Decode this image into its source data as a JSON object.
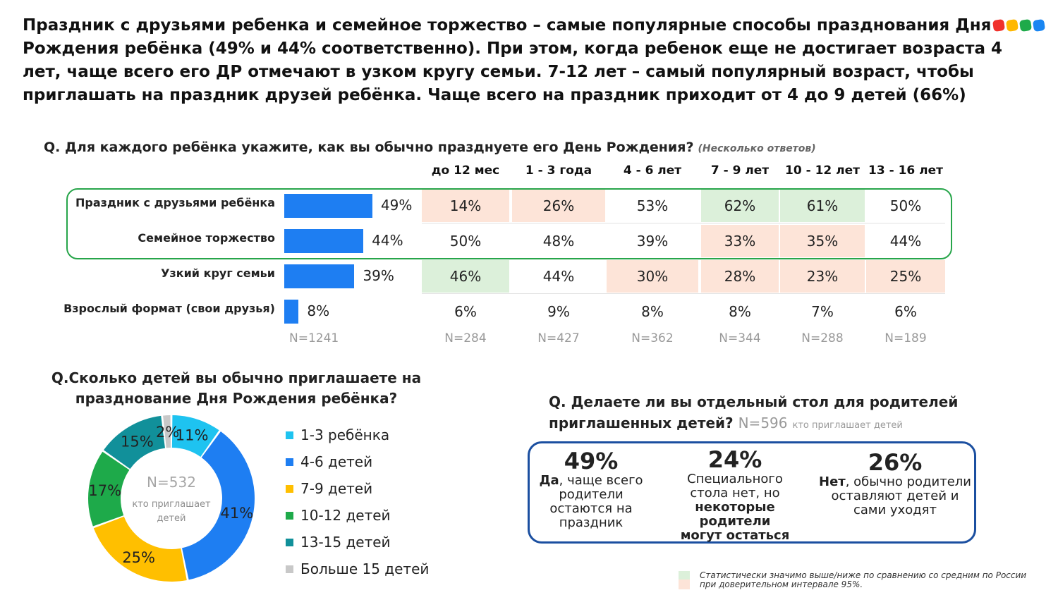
{
  "headline": "Праздник  с друзьями ребенка и семейное торжество  – самые популярные способы празднования Дня Рождения ребёнка (49% и 44% соответственно). При этом, когда ребенок еще не достигает возраста 4 лет, чаще всего его ДР отмечают в узком кругу семьи. 7-12 лет – самый популярный возраст, чтобы приглашать на праздник друзей ребёнка. Чаще всего на праздник приходит от 4 до 9 детей (66%)",
  "logo_colors": [
    "#f0312b",
    "#ffb800",
    "#1eaa4a",
    "#1a86f2"
  ],
  "q1": {
    "question": "Q. Для каждого ребёнка укажите, как вы обычно празднуете его День Рождения?",
    "note": "(Несколько ответов)"
  },
  "chart_data": [
    {
      "type": "table",
      "columns": [
        "до 12 мес",
        "1 - 3 года",
        "4 - 6 лет",
        "7 - 9 лет",
        "10 - 12 лет",
        "13 - 16 лет"
      ],
      "total_n": "N=1241",
      "column_n": [
        "N=284",
        "N=427",
        "N=362",
        "N=344",
        "N=288",
        "N=189"
      ],
      "highlight_colors": {
        "up": "#dcf0da",
        "down": "#fde4d8",
        "bar": "#1e7ef2",
        "box": "#27a54a"
      },
      "rows": [
        {
          "label": "Праздник с друзьями  ребёнка",
          "total": 49,
          "total_label": "49%",
          "values": [
            "14%",
            "26%",
            "53%",
            "62%",
            "61%",
            "50%"
          ],
          "sig": [
            "down",
            "down",
            "",
            "up",
            "up",
            ""
          ]
        },
        {
          "label": "Семейное торжество",
          "total": 44,
          "total_label": "44%",
          "values": [
            "50%",
            "48%",
            "39%",
            "33%",
            "35%",
            "44%"
          ],
          "sig": [
            "",
            "",
            "",
            "down",
            "down",
            ""
          ]
        },
        {
          "label": "Узкий круг семьи",
          "total": 39,
          "total_label": "39%",
          "values": [
            "46%",
            "44%",
            "30%",
            "28%",
            "23%",
            "25%"
          ],
          "sig": [
            "up",
            "",
            "down",
            "down",
            "down",
            "down"
          ]
        },
        {
          "label": "Взрослый формат (свои друзья)",
          "total": 8,
          "total_label": "8%",
          "values": [
            "6%",
            "9%",
            "8%",
            "8%",
            "7%",
            "6%"
          ],
          "sig": [
            "",
            "",
            "",
            "",
            "",
            ""
          ]
        }
      ]
    },
    {
      "type": "pie",
      "title": "Q.Сколько детей вы обычно приглашаете на празднование Дня Рождения ребёнка?",
      "center_n": "N=532",
      "center_text": "кто приглашает детей",
      "slices": [
        {
          "label": "1-3 ребёнка",
          "value": 11,
          "value_label": "11%",
          "color": "#1ec3f0"
        },
        {
          "label": "4-6 детей",
          "value": 41,
          "value_label": "41%",
          "color": "#1e7ef2"
        },
        {
          "label": "7-9 детей",
          "value": 25,
          "value_label": "25%",
          "color": "#ffbf00"
        },
        {
          "label": "10-12 детей",
          "value": 17,
          "value_label": "17%",
          "color": "#1eaa4a"
        },
        {
          "label": "13-15 детей",
          "value": 15,
          "value_label": "15%",
          "color": "#11909a"
        },
        {
          "label": "Больше 15 детей",
          "value": 2,
          "value_label": "2%",
          "color": "#c8c8c8"
        }
      ]
    }
  ],
  "q3": {
    "question": "Q. Делаете ли вы отдельный стол для родителей приглашенных детей?",
    "n": "N=596",
    "n_note": "кто приглашает  детей",
    "answers": [
      {
        "pct": "49%",
        "bold": "Да",
        "text": ", чаще всего родители остаются на праздник"
      },
      {
        "pct": "24%",
        "text": "Специального стола нет, но ",
        "bold": "некоторые родители могут остаться"
      },
      {
        "pct": "26%",
        "bold": "Нет",
        "text": ", обычно родители оставляют детей и сами уходят"
      }
    ],
    "box_color": "#1b4fa0"
  },
  "footnote": "Статистически значимо выше/ниже по сравнению со средним по России  при доверительном интервале 95%."
}
